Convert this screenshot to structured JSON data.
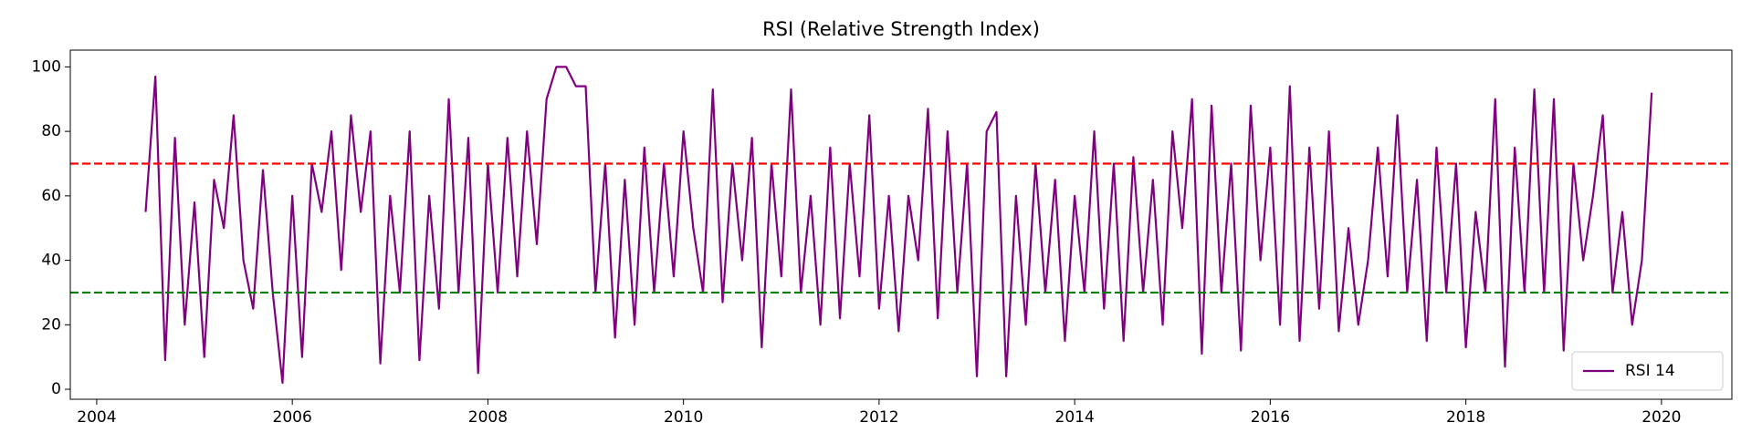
{
  "chart_data": {
    "type": "line",
    "title": "RSI (Relative Strength Index)",
    "x": [
      2004.5,
      2004.6,
      2004.7,
      2004.8,
      2004.9,
      2005.0,
      2005.1,
      2005.2,
      2005.3,
      2005.4,
      2005.5,
      2005.6,
      2005.7,
      2005.8,
      2005.9,
      2006.0,
      2006.1,
      2006.2,
      2006.3,
      2006.4,
      2006.5,
      2006.6,
      2006.7,
      2006.8,
      2006.9,
      2007.0,
      2007.1,
      2007.2,
      2007.3,
      2007.4,
      2007.5,
      2007.6,
      2007.7,
      2007.8,
      2007.9,
      2008.0,
      2008.1,
      2008.2,
      2008.3,
      2008.4,
      2008.5,
      2008.6,
      2008.7,
      2008.8,
      2008.9,
      2009.0,
      2009.1,
      2009.2,
      2009.3,
      2009.4,
      2009.5,
      2009.6,
      2009.7,
      2009.8,
      2009.9,
      2010.0,
      2010.1,
      2010.2,
      2010.3,
      2010.4,
      2010.5,
      2010.6,
      2010.7,
      2010.8,
      2010.9,
      2011.0,
      2011.1,
      2011.2,
      2011.3,
      2011.4,
      2011.5,
      2011.6,
      2011.7,
      2011.8,
      2011.9,
      2012.0,
      2012.1,
      2012.2,
      2012.3,
      2012.4,
      2012.5,
      2012.6,
      2012.7,
      2012.8,
      2012.9,
      2013.0,
      2013.1,
      2013.2,
      2013.3,
      2013.4,
      2013.5,
      2013.6,
      2013.7,
      2013.8,
      2013.9,
      2014.0,
      2014.1,
      2014.2,
      2014.3,
      2014.4,
      2014.5,
      2014.6,
      2014.7,
      2014.8,
      2014.9,
      2015.0,
      2015.1,
      2015.2,
      2015.3,
      2015.4,
      2015.5,
      2015.6,
      2015.7,
      2015.8,
      2015.9,
      2016.0,
      2016.1,
      2016.2,
      2016.3,
      2016.4,
      2016.5,
      2016.6,
      2016.7,
      2016.8,
      2016.9,
      2017.0,
      2017.1,
      2017.2,
      2017.3,
      2017.4,
      2017.5,
      2017.6,
      2017.7,
      2017.8,
      2017.9,
      2018.0,
      2018.1,
      2018.2,
      2018.3,
      2018.4,
      2018.5,
      2018.6,
      2018.7,
      2018.8,
      2018.9,
      2019.0,
      2019.1,
      2019.2,
      2019.3,
      2019.4,
      2019.5,
      2019.6,
      2019.7,
      2019.8,
      2019.9
    ],
    "series": [
      {
        "name": "RSI 14",
        "color": "#800080",
        "values": [
          55,
          97,
          9,
          78,
          20,
          58,
          10,
          65,
          50,
          85,
          40,
          25,
          68,
          30,
          2,
          60,
          10,
          70,
          55,
          80,
          37,
          85,
          55,
          80,
          8,
          60,
          30,
          80,
          9,
          60,
          25,
          90,
          30,
          78,
          5,
          70,
          30,
          78,
          35,
          80,
          45,
          90,
          100,
          100,
          94,
          94,
          30,
          70,
          16,
          65,
          20,
          75,
          30,
          70,
          35,
          80,
          50,
          30,
          93,
          27,
          70,
          40,
          78,
          13,
          70,
          35,
          93,
          30,
          60,
          20,
          75,
          22,
          70,
          35,
          85,
          25,
          60,
          18,
          60,
          40,
          87,
          22,
          80,
          30,
          70,
          4,
          80,
          86,
          4,
          60,
          20,
          70,
          30,
          65,
          15,
          60,
          30,
          80,
          25,
          70,
          15,
          72,
          30,
          65,
          20,
          80,
          50,
          90,
          11,
          88,
          30,
          70,
          12,
          88,
          40,
          75,
          20,
          94,
          15,
          75,
          25,
          80,
          18,
          50,
          20,
          40,
          75,
          35,
          85,
          30,
          65,
          15,
          75,
          30,
          70,
          13,
          55,
          30,
          90,
          7,
          75,
          30,
          93,
          30,
          90,
          12,
          70,
          40,
          60,
          85,
          30,
          55,
          20,
          40,
          92
        ]
      }
    ],
    "hlines": [
      {
        "value": 70,
        "color": "#ff0000"
      },
      {
        "value": 30,
        "color": "#008000"
      }
    ],
    "xlim": [
      2003.73,
      2020.72
    ],
    "xticks": [
      2004,
      2006,
      2008,
      2010,
      2012,
      2014,
      2016,
      2018,
      2020
    ],
    "ylim": [
      -3.1,
      105.2
    ],
    "yticks": [
      0,
      20,
      40,
      60,
      80,
      100
    ],
    "legend": "lower right"
  }
}
